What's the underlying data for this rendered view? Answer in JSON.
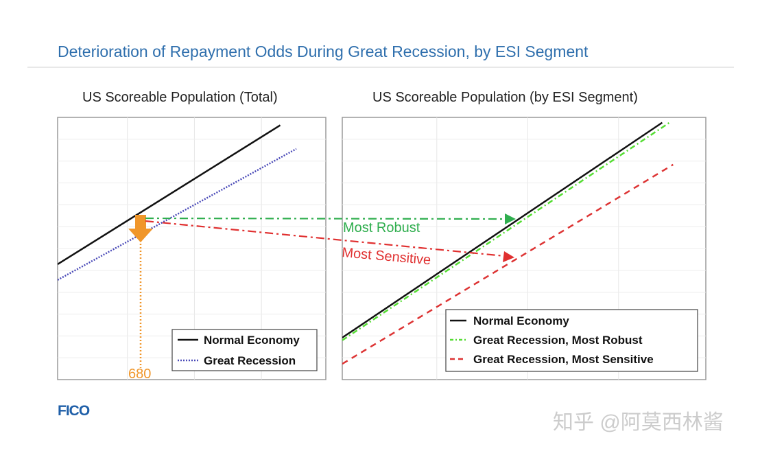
{
  "slide": {
    "title": "Deterioration of Repayment Odds During Great Recession, by ESI Segment",
    "logo": "FICO",
    "watermark": "知乎 @阿莫西林酱"
  },
  "chart_data": [
    {
      "type": "line",
      "title": "US Scoreable Population (Total)",
      "xlim": [
        0,
        100
      ],
      "ylim": [
        0,
        100
      ],
      "grid": true,
      "legend_position": "bottom-right",
      "series": [
        {
          "name": "Normal Economy",
          "color": "#111111",
          "style": "solid",
          "x": [
            0,
            83
          ],
          "y": [
            44,
            97
          ]
        },
        {
          "name": "Great Recession",
          "color": "#4a4ab8",
          "style": "dotted",
          "x": [
            0,
            89
          ],
          "y": [
            38,
            88
          ]
        }
      ],
      "annotation": {
        "label": "680",
        "x": 31,
        "color": "#f0962a"
      }
    },
    {
      "type": "line",
      "title": "US Scoreable Population (by ESI Segment)",
      "xlim": [
        0,
        100
      ],
      "ylim": [
        0,
        100
      ],
      "grid": true,
      "legend_position": "bottom-right",
      "series": [
        {
          "name": "Normal Economy",
          "color": "#111111",
          "style": "solid",
          "x": [
            0,
            88
          ],
          "y": [
            16,
            98
          ]
        },
        {
          "name": "Great Recession, Most Robust",
          "color": "#55dd33",
          "style": "dashdot",
          "x": [
            0,
            90
          ],
          "y": [
            15,
            98
          ]
        },
        {
          "name": "Great Recession, Most Sensitive",
          "color": "#dd3333",
          "style": "dashed",
          "x": [
            0,
            91
          ],
          "y": [
            6,
            82
          ]
        }
      ]
    }
  ],
  "arrows": [
    {
      "label": "Most Robust",
      "color": "#2fae4e"
    },
    {
      "label": "Most Sensitive",
      "color": "#e03030"
    }
  ]
}
